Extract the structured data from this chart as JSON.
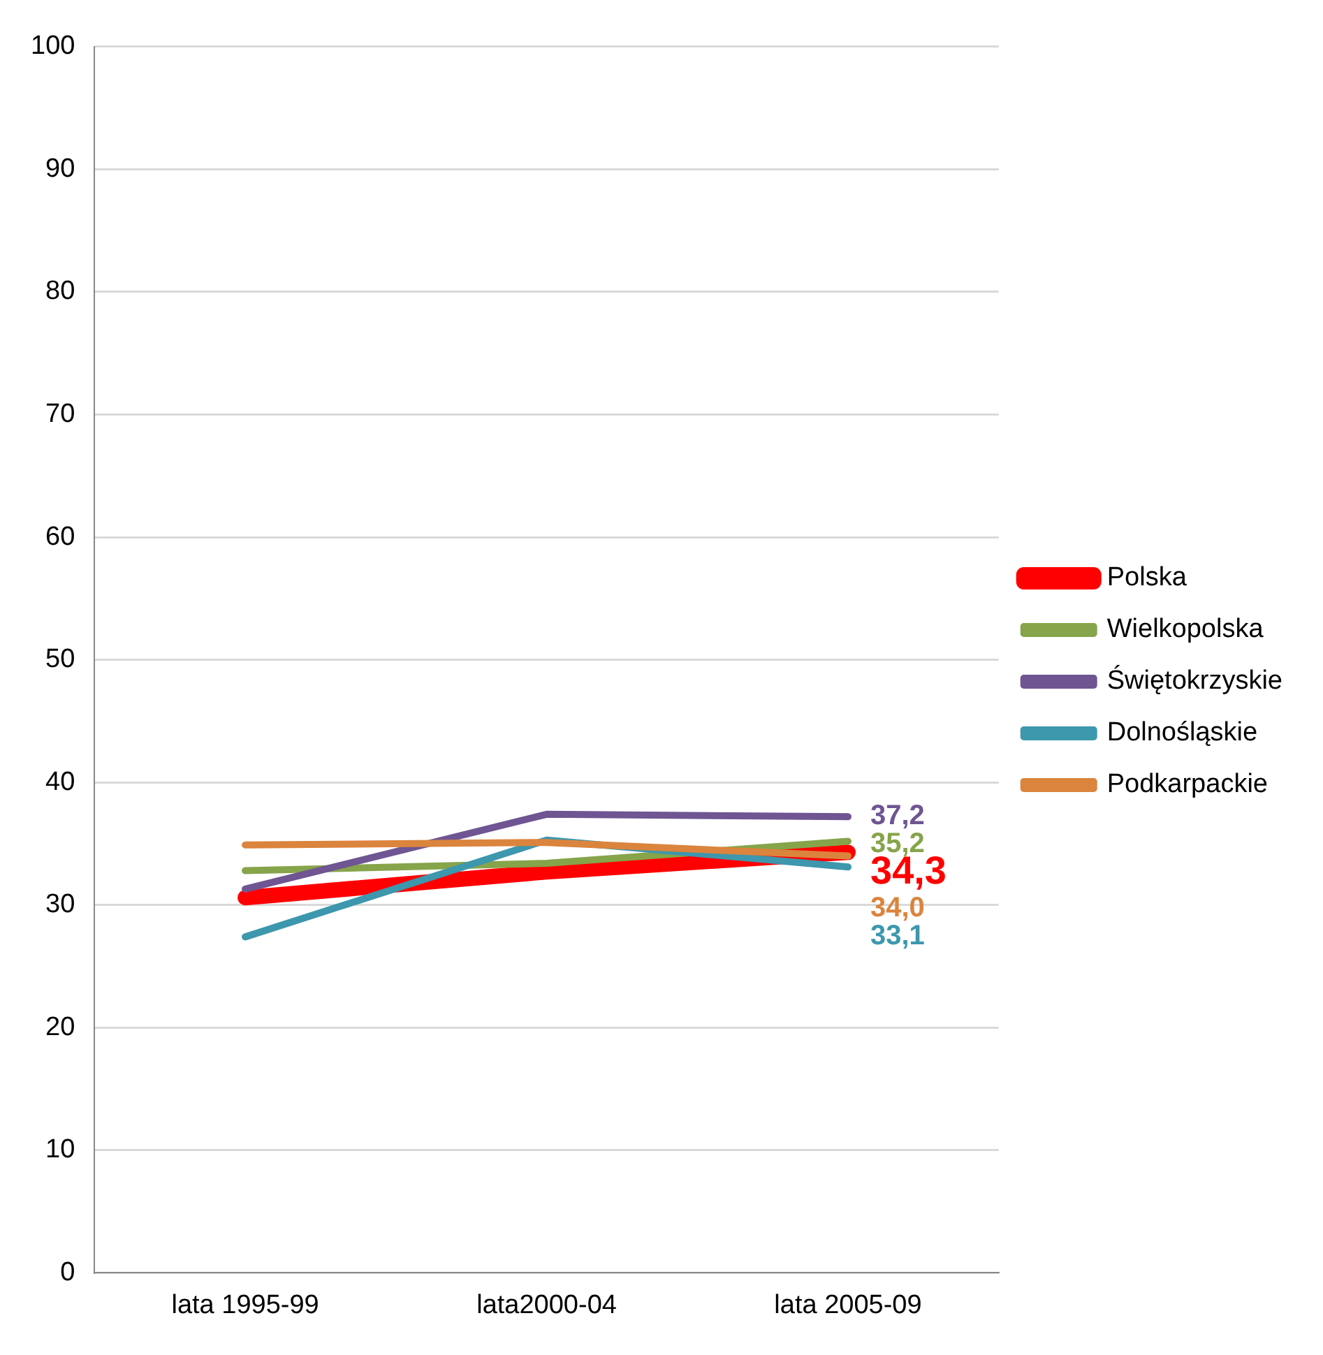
{
  "chart_data": {
    "type": "line",
    "categories": [
      "lata 1995-99",
      "lata2000-04",
      "lata 2005-09"
    ],
    "series": [
      {
        "name": "Polska",
        "color": "#ff0000",
        "values": [
          30.6,
          32.7,
          34.3
        ],
        "value_labels": [
          null,
          null,
          "34,3"
        ]
      },
      {
        "name": "Wielkopolska",
        "color": "#86a44a",
        "values": [
          32.8,
          33.4,
          35.2
        ],
        "value_labels": [
          null,
          null,
          "35,2"
        ]
      },
      {
        "name": "Świętokrzyskie",
        "color": "#6f5592",
        "values": [
          31.3,
          37.4,
          37.2
        ],
        "value_labels": [
          null,
          null,
          "37,2"
        ]
      },
      {
        "name": "Dolnośląskie",
        "color": "#3d97ad",
        "values": [
          27.4,
          35.3,
          33.1
        ],
        "value_labels": [
          null,
          null,
          "33,1"
        ]
      },
      {
        "name": "Podkarpackie",
        "color": "#db843d",
        "values": [
          34.9,
          35.1,
          34.0
        ],
        "value_labels": [
          null,
          null,
          "34,0"
        ]
      }
    ],
    "ylim": [
      0,
      100
    ],
    "yticks": [
      0,
      10,
      20,
      30,
      40,
      50,
      60,
      70,
      80,
      90,
      100
    ],
    "grid": "y",
    "legend": "right",
    "marker": "none",
    "line_style": "solid"
  }
}
